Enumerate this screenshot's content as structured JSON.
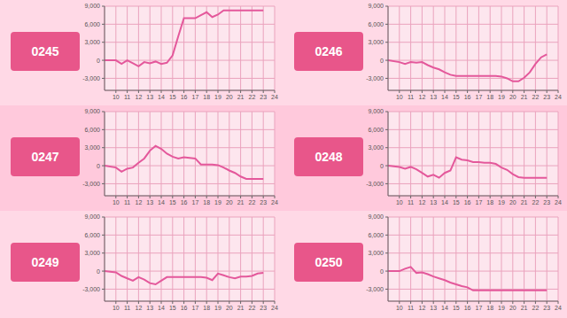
{
  "chart_data": [
    {
      "type": "line",
      "title": "0245",
      "color": "#e4589b",
      "grid": true,
      "x": [
        9,
        10,
        10.5,
        11,
        11.5,
        12,
        12.5,
        13,
        13.5,
        14,
        14.5,
        15,
        15.5,
        16,
        16.5,
        17,
        17.5,
        18,
        18.5,
        19,
        19.5,
        20,
        20.5,
        21,
        21.5,
        22,
        22.5,
        23
      ],
      "values": [
        0,
        0,
        -600,
        0,
        -500,
        -1000,
        -300,
        -500,
        -200,
        -600,
        -400,
        800,
        4000,
        7000,
        7000,
        7000,
        7500,
        8000,
        7200,
        7600,
        8300,
        8300,
        8300,
        8300,
        8300,
        8300,
        8300,
        8300
      ],
      "xlim": [
        9,
        24
      ],
      "xticks": [
        10,
        11,
        12,
        13,
        14,
        15,
        16,
        17,
        18,
        19,
        20,
        21,
        22,
        23,
        24
      ],
      "ylim": [
        -5000,
        9000
      ],
      "yticks": [
        {
          "value": -3000,
          "label": "-3,000"
        },
        0,
        {
          "value": 3000,
          "label": "3,000"
        },
        {
          "value": 6000,
          "label": "6,000"
        },
        {
          "value": 9000,
          "label": "9,000"
        }
      ]
    },
    {
      "type": "line",
      "title": "0246",
      "color": "#e4589b",
      "grid": true,
      "x": [
        9,
        10,
        10.5,
        11,
        11.5,
        12,
        12.5,
        13,
        13.5,
        14,
        14.5,
        15,
        15.5,
        16,
        16.5,
        17,
        17.5,
        18,
        18.5,
        19,
        19.5,
        20,
        20.5,
        21,
        21.5,
        22,
        22.5,
        23
      ],
      "values": [
        0,
        -300,
        -600,
        -300,
        -400,
        -300,
        -800,
        -1200,
        -1500,
        -2000,
        -2400,
        -2600,
        -2600,
        -2600,
        -2600,
        -2600,
        -2600,
        -2600,
        -2600,
        -2700,
        -3000,
        -3500,
        -3500,
        -2900,
        -2000,
        -600,
        500,
        1000
      ],
      "xlim": [
        9,
        24
      ],
      "xticks": [
        10,
        11,
        12,
        13,
        14,
        15,
        16,
        17,
        18,
        19,
        20,
        21,
        22,
        23,
        24
      ],
      "ylim": [
        -5000,
        9000
      ],
      "yticks": [
        {
          "value": -3000,
          "label": "-3,000"
        },
        0,
        {
          "value": 3000,
          "label": "3,000"
        },
        {
          "value": 6000,
          "label": "6,000"
        },
        {
          "value": 9000,
          "label": "9,000"
        }
      ]
    },
    {
      "type": "line",
      "title": "0247",
      "color": "#e4589b",
      "grid": true,
      "x": [
        9,
        10,
        10.5,
        11,
        11.5,
        12,
        12.5,
        13,
        13.5,
        14,
        14.5,
        15,
        15.5,
        16,
        16.5,
        17,
        17.5,
        18,
        18.5,
        19,
        19.5,
        20,
        20.5,
        21,
        21.5,
        22,
        22.5,
        23
      ],
      "values": [
        0,
        -300,
        -1000,
        -500,
        -300,
        500,
        1200,
        2500,
        3300,
        2800,
        2000,
        1500,
        1200,
        1400,
        1300,
        1200,
        200,
        200,
        200,
        100,
        -300,
        -800,
        -1200,
        -1800,
        -2200,
        -2200,
        -2200,
        -2200
      ],
      "xlim": [
        9,
        24
      ],
      "xticks": [
        10,
        11,
        12,
        13,
        14,
        15,
        16,
        17,
        18,
        19,
        20,
        21,
        22,
        23,
        24
      ],
      "ylim": [
        -5000,
        9000
      ],
      "yticks": [
        {
          "value": -3000,
          "label": "-3,000"
        },
        0,
        {
          "value": 3000,
          "label": "3,000"
        },
        {
          "value": 6000,
          "label": "6,000"
        },
        {
          "value": 9000,
          "label": "9,000"
        }
      ]
    },
    {
      "type": "line",
      "title": "0248",
      "color": "#e4589b",
      "grid": true,
      "x": [
        9,
        10,
        10.5,
        11,
        11.5,
        12,
        12.5,
        13,
        13.5,
        14,
        14.5,
        15,
        15.5,
        16,
        16.5,
        17,
        17.5,
        18,
        18.5,
        19,
        19.5,
        20,
        20.5,
        21,
        21.5,
        22,
        22.5,
        23
      ],
      "values": [
        0,
        -200,
        -500,
        -200,
        -600,
        -1200,
        -1800,
        -1500,
        -2000,
        -1200,
        -800,
        1400,
        1000,
        900,
        600,
        600,
        500,
        500,
        300,
        -300,
        -700,
        -1400,
        -1900,
        -2000,
        -2000,
        -2000,
        -2000,
        -2000
      ],
      "xlim": [
        9,
        24
      ],
      "xticks": [
        10,
        11,
        12,
        13,
        14,
        15,
        16,
        17,
        18,
        19,
        20,
        21,
        22,
        23,
        24
      ],
      "ylim": [
        -5000,
        9000
      ],
      "yticks": [
        {
          "value": -3000,
          "label": "-3,000"
        },
        0,
        {
          "value": 3000,
          "label": "3,000"
        },
        {
          "value": 6000,
          "label": "6,000"
        },
        {
          "value": 9000,
          "label": "9,000"
        }
      ]
    },
    {
      "type": "line",
      "title": "0249",
      "color": "#e4589b",
      "grid": true,
      "x": [
        9,
        10,
        10.5,
        11,
        11.5,
        12,
        12.5,
        13,
        13.5,
        14,
        14.5,
        15,
        15.5,
        16,
        16.5,
        17,
        17.5,
        18,
        18.5,
        19,
        19.5,
        20,
        20.5,
        21,
        21.5,
        22,
        22.5,
        23
      ],
      "values": [
        0,
        -200,
        -800,
        -1200,
        -1600,
        -1000,
        -1400,
        -2000,
        -2200,
        -1600,
        -1000,
        -1000,
        -1000,
        -1000,
        -1000,
        -1000,
        -1000,
        -1100,
        -1500,
        -400,
        -700,
        -1000,
        -1200,
        -900,
        -900,
        -800,
        -400,
        -300
      ],
      "xlim": [
        9,
        24
      ],
      "xticks": [
        10,
        11,
        12,
        13,
        14,
        15,
        16,
        17,
        18,
        19,
        20,
        21,
        22,
        23,
        24
      ],
      "ylim": [
        -5000,
        9000
      ],
      "yticks": [
        {
          "value": -3000,
          "label": "-3,000"
        },
        0,
        {
          "value": 3000,
          "label": "3,000"
        },
        {
          "value": 6000,
          "label": "6,000"
        },
        {
          "value": 9000,
          "label": "9,000"
        }
      ]
    },
    {
      "type": "line",
      "title": "0250",
      "color": "#e4589b",
      "grid": true,
      "x": [
        9,
        10,
        10.5,
        11,
        11.5,
        12,
        12.5,
        13,
        13.5,
        14,
        14.5,
        15,
        15.5,
        16,
        16.5,
        17,
        17.5,
        18,
        18.5,
        19,
        19.5,
        20,
        20.5,
        21,
        21.5,
        22,
        22.5,
        23
      ],
      "values": [
        0,
        0,
        400,
        700,
        -300,
        -200,
        -500,
        -900,
        -1200,
        -1500,
        -1900,
        -2200,
        -2500,
        -2700,
        -3200,
        -3200,
        -3200,
        -3200,
        -3200,
        -3200,
        -3200,
        -3200,
        -3200,
        -3200,
        -3200,
        -3200,
        -3200,
        -3200
      ],
      "xlim": [
        9,
        24
      ],
      "xticks": [
        10,
        11,
        12,
        13,
        14,
        15,
        16,
        17,
        18,
        19,
        20,
        21,
        22,
        23,
        24
      ],
      "ylim": [
        -5000,
        9000
      ],
      "yticks": [
        {
          "value": -3000,
          "label": "-3,000"
        },
        0,
        {
          "value": 3000,
          "label": "3,000"
        },
        {
          "value": 6000,
          "label": "6,000"
        },
        {
          "value": 9000,
          "label": "9,000"
        }
      ]
    }
  ]
}
